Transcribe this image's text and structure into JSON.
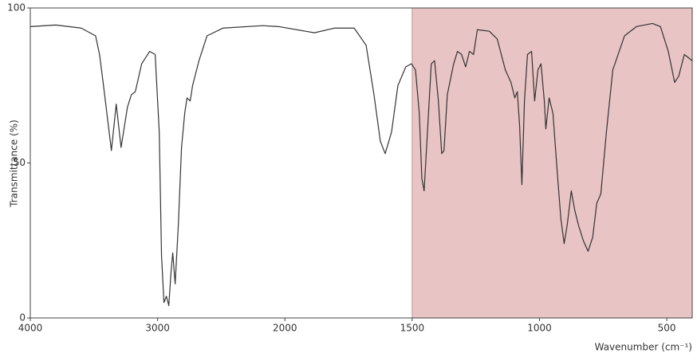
{
  "chart_data": {
    "type": "line",
    "x_label": "Wavenumber (cm⁻¹)",
    "y_label": "Transmittance (%)",
    "xlim": [
      4000,
      400
    ],
    "xticks": [
      4000,
      3000,
      2000,
      1500,
      1000,
      500
    ],
    "xscale_break": 2000,
    "xscale_break_factor": 2,
    "ylim": [
      0,
      100
    ],
    "yticks": [
      0,
      50,
      100
    ],
    "shaded_range": [
      1500,
      400
    ],
    "shaded_color": "#e8c4c4",
    "x": [
      4000,
      3800,
      3600,
      3487,
      3456,
      3425,
      3363,
      3325,
      3287,
      3237,
      3206,
      3175,
      3125,
      3062,
      3019,
      2987,
      2969,
      2950,
      2931,
      2912,
      2894,
      2881,
      2862,
      2837,
      2812,
      2787,
      2769,
      2744,
      2725,
      2675,
      2612,
      2487,
      2175,
      2050,
      1884,
      1806,
      1728,
      1681,
      1650,
      1625,
      1606,
      1581,
      1556,
      1525,
      1503,
      1487,
      1472,
      1462,
      1453,
      1440,
      1425,
      1412,
      1397,
      1384,
      1375,
      1362,
      1337,
      1322,
      1306,
      1290,
      1275,
      1259,
      1244,
      1197,
      1166,
      1134,
      1112,
      1097,
      1087,
      1078,
      1069,
      1059,
      1047,
      1031,
      1019,
      1006,
      994,
      981,
      975,
      962,
      947,
      931,
      916,
      903,
      891,
      875,
      862,
      847,
      828,
      809,
      791,
      775,
      759,
      737,
      712,
      666,
      619,
      556,
      525,
      494,
      469,
      453,
      431,
      400
    ],
    "series": [
      {
        "color": "#333333",
        "values": [
          94,
          94.5,
          93.5,
          91,
          85,
          75,
          54,
          69,
          55,
          68,
          72,
          73,
          82,
          86,
          85,
          60,
          20,
          5,
          7,
          4,
          15,
          21,
          11,
          30,
          55,
          66,
          71,
          70,
          75,
          83,
          91,
          93.5,
          94.3,
          94,
          92,
          93.5,
          93.5,
          88,
          72,
          57,
          53,
          60,
          75,
          81,
          82,
          80,
          66,
          45,
          41,
          60,
          82,
          83,
          70,
          53,
          54,
          72,
          82,
          86,
          85,
          81,
          86,
          85,
          93,
          92.5,
          90,
          80,
          76,
          71,
          73,
          62,
          43,
          70,
          85,
          86,
          70,
          80,
          82,
          70,
          61,
          71,
          66,
          48,
          32,
          24,
          30,
          41,
          35,
          30,
          25,
          21.5,
          26,
          37,
          40,
          60,
          80,
          91,
          94,
          95,
          94,
          86,
          76,
          78,
          85,
          83
        ]
      }
    ]
  }
}
